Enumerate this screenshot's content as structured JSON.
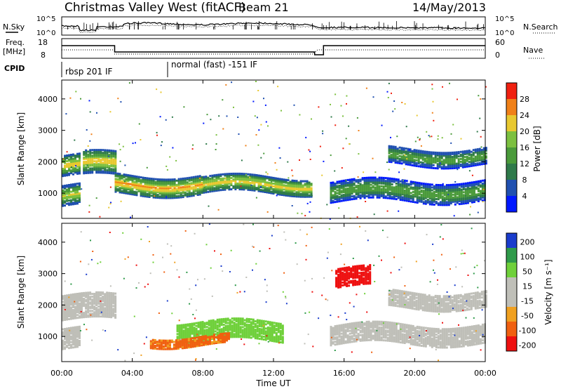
{
  "header": {
    "title": "Christmas Valley West (fitACF)",
    "beam": "Beam 21",
    "date": "14/May/2013"
  },
  "chart_data": [
    {
      "type": "line",
      "panel": "noise",
      "left_label": "N.Sky",
      "right_label": "N.Search",
      "left_ticks": [
        "10^5",
        "10^0"
      ],
      "right_ticks": [
        "10^5",
        "10^0"
      ]
    },
    {
      "type": "line",
      "panel": "frequency",
      "left_label": "Freq.",
      "left_unit": "[MHz]",
      "left_ticks": [
        "18",
        "8"
      ],
      "right_label": "Nave",
      "right_ticks": [
        "60",
        "0"
      ],
      "series": [
        {
          "x": [
            "00:00",
            "03:00",
            "03:00",
            "14:20",
            "14:20",
            "14:50",
            "14:50",
            "24:00"
          ],
          "values": [
            15.0,
            15.0,
            10.5,
            10.5,
            8.5,
            8.5,
            15.0,
            15.0
          ]
        }
      ]
    },
    {
      "type": "table",
      "panel": "cpid",
      "label": "CPID",
      "programs": [
        {
          "start": "00:00",
          "name": "rbsp 201 IF"
        },
        {
          "start": "06:00",
          "name": "normal (fast) -151 IF"
        }
      ]
    },
    {
      "type": "heatmap",
      "panel": "power",
      "ylabel": "Slant Range [km]",
      "yticks": [
        "1000",
        "2000",
        "3000",
        "4000"
      ],
      "ylim": [
        200,
        4600
      ],
      "colorbar": {
        "label": "Power [dB]",
        "ticks": [
          "4",
          "8",
          "12",
          "16",
          "20",
          "24",
          "28"
        ],
        "colors": [
          "#0018ff",
          "#2050b0",
          "#2f7a4a",
          "#4a9a3a",
          "#7cc040",
          "#e8c830",
          "#f08018",
          "#f02010"
        ]
      },
      "bands": [
        {
          "t0": 0.0,
          "t1": 1.0,
          "r_center": 950,
          "r_width": 320,
          "level": 22
        },
        {
          "t0": 0.0,
          "t1": 1.0,
          "r_center": 1900,
          "r_width": 320,
          "level": 24
        },
        {
          "t0": 1.2,
          "t1": 3.0,
          "r_center": 1950,
          "r_width": 380,
          "level": 24
        },
        {
          "t0": 3.0,
          "t1": 8.0,
          "r_center": 1300,
          "r_width": 300,
          "level": 26
        },
        {
          "t0": 8.0,
          "t1": 14.2,
          "r_center": 1300,
          "r_width": 260,
          "level": 24
        },
        {
          "t0": 15.2,
          "t1": 24.0,
          "r_center": 1100,
          "r_width": 320,
          "level": 16
        },
        {
          "t0": 18.5,
          "t1": 24.0,
          "r_center": 2200,
          "r_width": 260,
          "level": 16
        }
      ]
    },
    {
      "type": "heatmap",
      "panel": "velocity",
      "ylabel": "Slant Range [km]",
      "yticks": [
        "1000",
        "2000",
        "3000",
        "4000"
      ],
      "ylim": [
        200,
        4600
      ],
      "colorbar": {
        "label": "Velocity [m s⁻¹]",
        "ticks": [
          "200",
          "100",
          "50",
          "15",
          "-15",
          "-50",
          "-100",
          "-200"
        ],
        "colors": [
          "#1a3ccc",
          "#2f9a4a",
          "#6fd03a",
          "#bfbfb8",
          "#bfbfb8",
          "#f0a020",
          "#f06010",
          "#ee1010"
        ]
      },
      "bands": [
        {
          "t0": 0.0,
          "t1": 1.0,
          "r_center": 950,
          "r_width": 320,
          "value": 0
        },
        {
          "t0": 0.0,
          "t1": 3.0,
          "r_center": 1950,
          "r_width": 400,
          "value": 0
        },
        {
          "t0": 6.5,
          "t1": 12.5,
          "r_center": 1200,
          "r_width": 300,
          "value": 60
        },
        {
          "t0": 5.0,
          "t1": 9.5,
          "r_center": 900,
          "r_width": 150,
          "value": -60
        },
        {
          "t0": 15.2,
          "t1": 24.0,
          "r_center": 1100,
          "r_width": 300,
          "value": 0
        },
        {
          "t0": 18.5,
          "t1": 24.0,
          "r_center": 2200,
          "r_width": 260,
          "value": 0
        },
        {
          "t0": 15.5,
          "t1": 17.5,
          "r_center": 2900,
          "r_width": 300,
          "value": -180
        }
      ]
    }
  ],
  "xaxis": {
    "label": "Time UT",
    "ticks": [
      "00:00",
      "04:00",
      "08:00",
      "12:00",
      "16:00",
      "20:00",
      "00:00"
    ]
  }
}
